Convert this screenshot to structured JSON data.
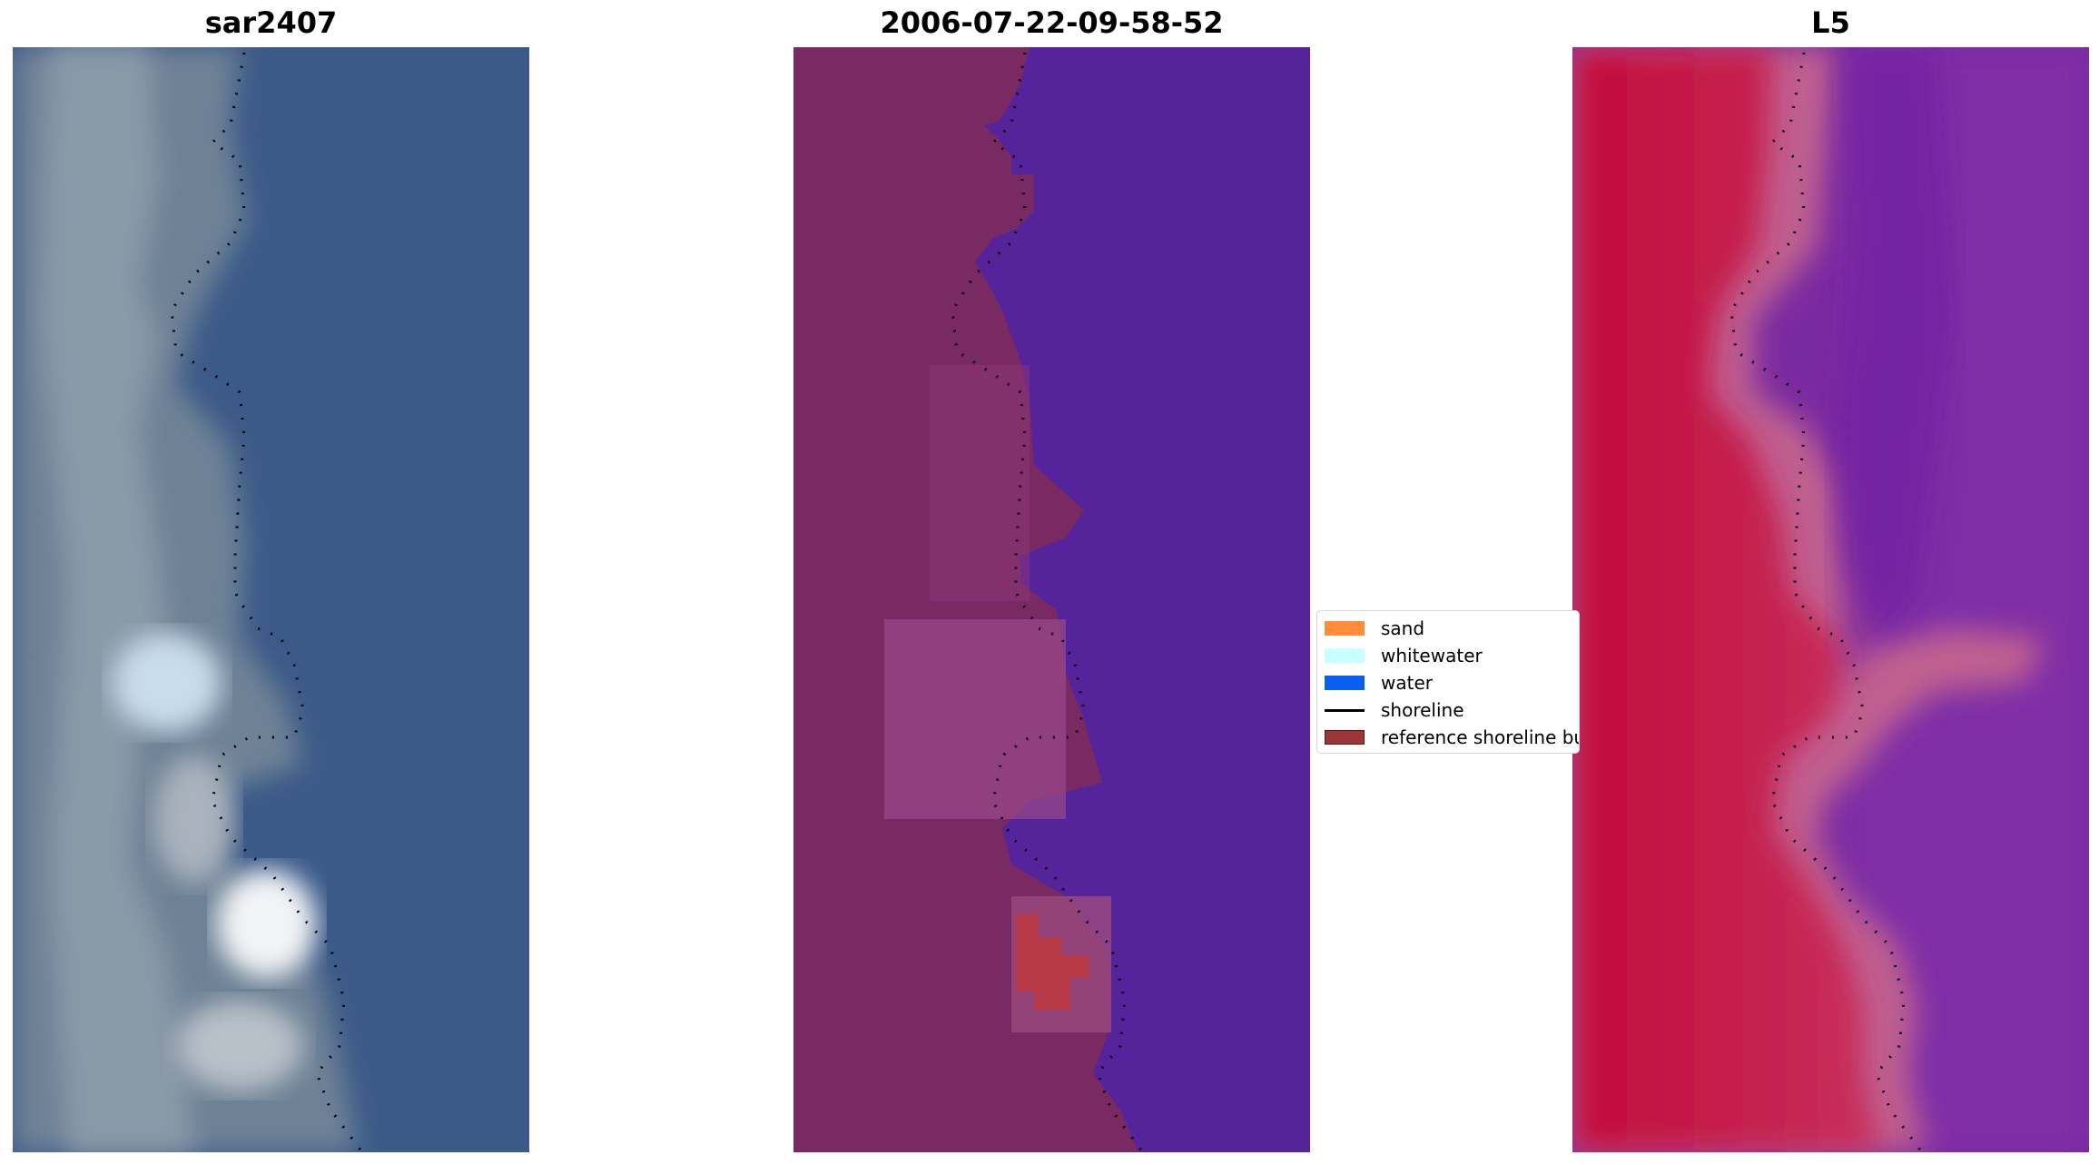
{
  "panels": [
    {
      "title": "sar2407"
    },
    {
      "title": "2006-07-22-09-58-52"
    },
    {
      "title": "L5"
    }
  ],
  "legend": {
    "items": [
      {
        "label": "sand",
        "color": "#ff8c3a",
        "kind": "patch"
      },
      {
        "label": "whitewater",
        "color": "#c8ffff",
        "kind": "patch"
      },
      {
        "label": "water",
        "color": "#0a5ff0",
        "kind": "patch"
      },
      {
        "label": "shoreline",
        "color": "#000000",
        "kind": "line"
      },
      {
        "label": "reference shoreline buffer",
        "color": "#9b3538",
        "kind": "patch"
      }
    ]
  },
  "colors": {
    "rgb_water": "#3b5987",
    "rgb_land": "#6b7f92",
    "class_water": "#55239a",
    "class_land": "#7a2a62",
    "class_buffer": "#b83a48",
    "index_land": "#c2103e",
    "index_water": "#7a2aa0"
  }
}
